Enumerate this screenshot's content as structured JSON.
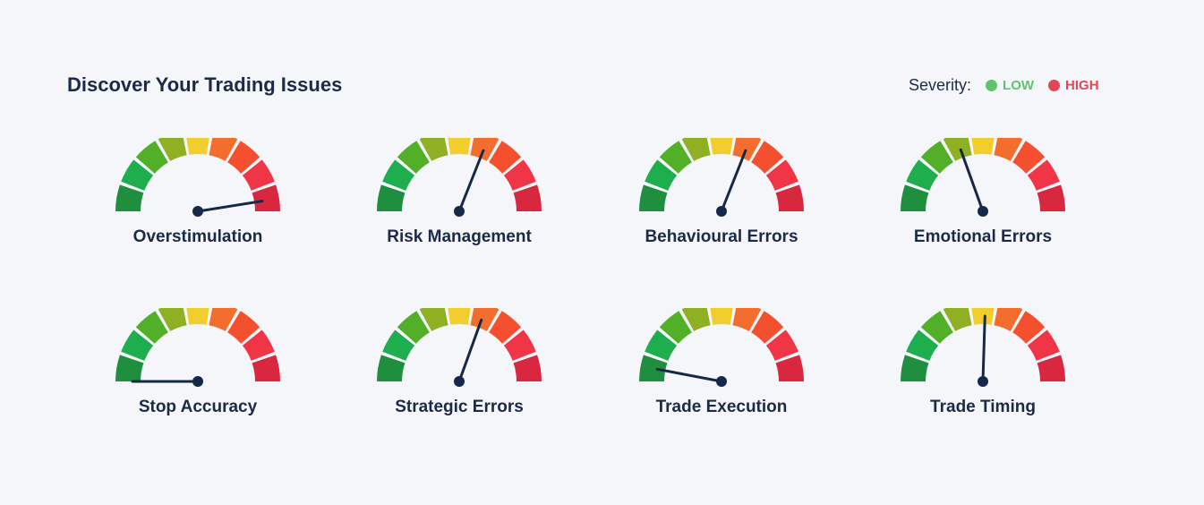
{
  "header": {
    "title": "Discover Your Trading Issues"
  },
  "legend": {
    "label": "Severity:",
    "low": {
      "text": "LOW",
      "color": "#5cc46f"
    },
    "high": {
      "text": "HIGH",
      "color": "#e04858"
    }
  },
  "segment_colors": [
    "#1f8f3f",
    "#1fae4e",
    "#52b028",
    "#8fb022",
    "#f2cd2e",
    "#f36d2e",
    "#f4502f",
    "#f03547",
    "#d92740"
  ],
  "needle_color": "#15284a",
  "gauges": [
    {
      "label": "Overstimulation",
      "severity": 0.95
    },
    {
      "label": "Risk Management",
      "severity": 0.62
    },
    {
      "label": "Behavioural Errors",
      "severity": 0.62
    },
    {
      "label": "Emotional Errors",
      "severity": 0.39
    },
    {
      "label": "Stop Accuracy",
      "severity": 0.0
    },
    {
      "label": "Strategic Errors",
      "severity": 0.61
    },
    {
      "label": "Trade Execution",
      "severity": 0.06
    },
    {
      "label": "Trade Timing",
      "severity": 0.51
    }
  ]
}
